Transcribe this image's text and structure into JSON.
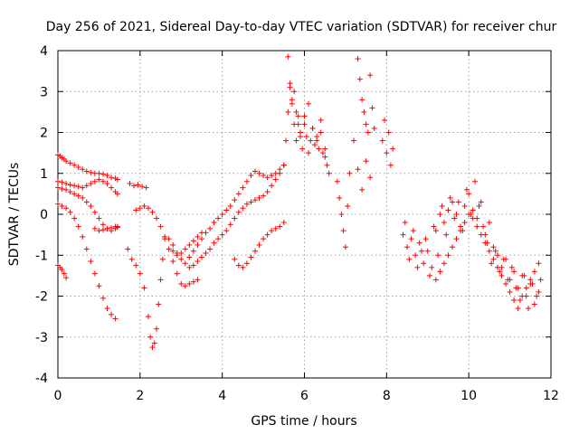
{
  "chart_data": {
    "type": "scatter",
    "title": "Day 256 of 2021, Sidereal Day-to-day VTEC variation (SDTVAR) for receiver chur",
    "xlabel": "GPS time / hours",
    "ylabel": "SDTVAR / TECUs",
    "xlim": [
      0,
      12
    ],
    "ylim": [
      -4,
      4
    ],
    "xticks": [
      0,
      2,
      4,
      6,
      8,
      10,
      12
    ],
    "yticks": [
      -4,
      -3,
      -2,
      -1,
      0,
      1,
      2,
      3,
      4
    ],
    "grid": true,
    "marker": "+",
    "series": [
      {
        "name": "SDTVAR",
        "color": "#ff0000",
        "x": [
          0.0,
          0.05,
          0.1,
          0.15,
          0.2,
          0.3,
          0.4,
          0.5,
          0.6,
          0.7,
          0.8,
          0.9,
          1.0,
          1.1,
          1.2,
          1.3,
          1.4,
          1.45,
          0.0,
          0.1,
          0.2,
          0.3,
          0.4,
          0.5,
          0.6,
          0.7,
          0.8,
          0.9,
          1.0,
          1.1,
          1.2,
          1.3,
          1.4,
          1.45,
          0.0,
          0.1,
          0.2,
          0.3,
          0.4,
          0.5,
          0.6,
          0.7,
          0.8,
          0.9,
          1.0,
          1.1,
          1.2,
          1.3,
          1.4,
          1.45,
          0.0,
          0.1,
          0.2,
          0.3,
          0.4,
          0.5,
          0.6,
          0.7,
          0.8,
          0.9,
          1.0,
          1.1,
          1.2,
          1.3,
          1.4,
          0.0,
          0.05,
          0.1,
          0.15,
          0.2,
          0.9,
          1.0,
          1.1,
          1.2,
          1.3,
          1.4,
          1.45,
          1.75,
          1.85,
          1.95,
          2.05,
          2.15,
          1.7,
          1.8,
          1.9,
          2.0,
          2.1,
          2.2,
          2.25,
          2.3,
          2.35,
          2.4,
          2.45,
          2.5,
          2.55,
          2.6,
          1.9,
          2.0,
          2.1,
          2.2,
          2.3,
          2.4,
          2.5,
          2.6,
          2.7,
          2.8,
          2.9,
          3.0,
          3.1,
          3.2,
          3.3,
          3.4,
          2.7,
          2.8,
          2.9,
          3.0,
          3.1,
          3.2,
          3.3,
          3.4,
          3.5,
          3.6,
          3.7,
          3.8,
          3.9,
          4.0,
          4.1,
          4.2,
          4.3,
          4.4,
          4.5,
          4.6,
          4.7,
          4.8,
          4.9,
          5.0,
          5.1,
          5.2,
          5.3,
          5.4,
          3.2,
          3.3,
          3.4,
          3.5,
          3.6,
          3.7,
          3.8,
          3.9,
          4.0,
          4.1,
          4.2,
          4.3,
          4.4,
          4.5,
          4.6,
          4.7,
          4.8,
          4.9,
          5.0,
          5.1,
          5.2,
          5.3,
          5.4,
          5.5,
          4.3,
          4.4,
          4.5,
          4.6,
          4.7,
          4.8,
          4.9,
          5.0,
          5.1,
          5.2,
          5.3,
          5.4,
          5.5,
          2.8,
          2.9,
          3.0,
          3.1,
          3.2,
          3.3,
          3.4,
          3.5,
          5.5,
          5.55,
          5.6,
          5.65,
          5.7,
          5.75,
          5.8,
          5.85,
          5.9,
          5.95,
          6.0,
          6.05,
          6.1,
          6.15,
          6.2,
          6.25,
          6.3,
          6.35,
          6.4,
          6.45,
          6.5,
          6.55,
          6.6,
          5.6,
          5.65,
          5.7,
          5.75,
          5.8,
          5.85,
          5.9,
          6.0,
          6.1,
          6.2,
          6.3,
          6.4,
          6.5,
          6.8,
          6.85,
          6.9,
          6.95,
          7.0,
          7.05,
          7.1,
          7.3,
          7.35,
          7.4,
          7.45,
          7.5,
          7.55,
          7.6,
          7.65,
          7.7,
          7.2,
          7.3,
          7.4,
          7.5,
          7.6,
          7.9,
          7.95,
          8.0,
          8.05,
          8.1,
          8.15,
          8.4,
          8.5,
          8.6,
          8.7,
          8.8,
          8.9,
          9.0,
          9.1,
          9.2,
          9.3,
          9.4,
          9.5,
          9.6,
          9.7,
          9.8,
          9.9,
          10.0,
          10.1,
          10.2,
          10.3,
          10.4,
          10.5,
          10.6,
          10.7,
          10.8,
          10.9,
          11.0,
          11.1,
          11.2,
          11.3,
          11.4,
          11.5,
          11.6,
          11.7,
          8.45,
          8.55,
          8.65,
          8.75,
          8.85,
          8.95,
          9.05,
          9.15,
          9.25,
          9.35,
          9.45,
          9.55,
          9.65,
          9.75,
          9.85,
          9.95,
          10.05,
          10.15,
          10.25,
          10.35,
          10.45,
          10.55,
          10.65,
          10.75,
          10.85,
          10.95,
          11.05,
          11.15,
          11.25,
          11.35,
          11.45,
          11.55,
          11.65,
          11.75,
          9.2,
          9.3,
          9.4,
          9.5,
          9.6,
          9.7,
          9.8,
          9.9,
          10.0,
          10.1,
          10.2,
          10.3,
          10.4,
          10.5,
          10.6,
          10.7,
          10.8,
          10.9,
          11.0,
          11.1,
          11.2,
          11.3,
          11.4,
          11.5,
          11.6,
          11.7
        ],
        "y": [
          1.45,
          1.42,
          1.38,
          1.35,
          1.3,
          1.25,
          1.2,
          1.15,
          1.1,
          1.05,
          1.02,
          1.0,
          1.0,
          0.98,
          0.95,
          0.9,
          0.88,
          0.85,
          0.8,
          0.78,
          0.75,
          0.72,
          0.7,
          0.68,
          0.65,
          0.7,
          0.75,
          0.8,
          0.85,
          0.8,
          0.75,
          0.65,
          0.55,
          0.5,
          0.65,
          0.62,
          0.6,
          0.55,
          0.5,
          0.45,
          0.4,
          0.3,
          0.2,
          0.05,
          -0.1,
          -0.25,
          -0.35,
          -0.4,
          -0.35,
          -0.3,
          0.25,
          0.2,
          0.15,
          0.05,
          -0.1,
          -0.3,
          -0.55,
          -0.85,
          -1.15,
          -1.45,
          -1.75,
          -2.05,
          -2.3,
          -2.45,
          -2.55,
          -1.25,
          -1.3,
          -1.35,
          -1.45,
          -1.55,
          -0.35,
          -0.4,
          -0.38,
          -0.35,
          -0.33,
          -0.3,
          -0.32,
          0.75,
          0.7,
          0.72,
          0.68,
          0.65,
          -0.85,
          -1.1,
          -1.25,
          -1.45,
          -1.8,
          -2.5,
          -3.0,
          -3.25,
          -3.15,
          -2.8,
          -2.2,
          -1.6,
          -1.1,
          -0.6,
          0.1,
          0.15,
          0.2,
          0.15,
          0.05,
          -0.1,
          -0.3,
          -0.55,
          -0.85,
          -1.15,
          -1.45,
          -1.7,
          -1.75,
          -1.7,
          -1.65,
          -1.6,
          -0.6,
          -0.75,
          -0.95,
          -1.1,
          -1.2,
          -1.05,
          -0.9,
          -0.75,
          -0.6,
          -0.45,
          -0.35,
          -0.2,
          -0.1,
          0.0,
          0.1,
          0.2,
          0.35,
          0.5,
          0.65,
          0.8,
          0.95,
          1.05,
          1.0,
          0.95,
          0.9,
          0.95,
          1.0,
          1.1,
          -1.3,
          -1.25,
          -1.15,
          -1.05,
          -0.95,
          -0.85,
          -0.7,
          -0.6,
          -0.5,
          -0.4,
          -0.25,
          -0.1,
          0.05,
          0.15,
          0.25,
          0.3,
          0.35,
          0.4,
          0.45,
          0.55,
          0.7,
          0.85,
          1.0,
          1.2,
          -1.1,
          -1.25,
          -1.3,
          -1.2,
          -1.05,
          -0.9,
          -0.75,
          -0.6,
          -0.5,
          -0.4,
          -0.35,
          -0.3,
          -0.2,
          -0.9,
          -1.0,
          -0.95,
          -0.85,
          -0.75,
          -0.65,
          -0.55,
          -0.45,
          1.2,
          1.8,
          2.5,
          3.1,
          2.7,
          2.2,
          1.8,
          2.4,
          2.0,
          1.6,
          2.2,
          1.9,
          1.5,
          1.8,
          2.1,
          1.7,
          1.9,
          1.6,
          2.0,
          1.5,
          1.4,
          1.2,
          1.0,
          3.85,
          3.2,
          2.8,
          3.0,
          2.5,
          2.2,
          1.9,
          2.4,
          2.7,
          2.1,
          1.8,
          2.3,
          1.6,
          0.8,
          0.4,
          0.0,
          -0.4,
          -0.8,
          0.2,
          1.0,
          3.8,
          3.3,
          2.8,
          2.5,
          2.2,
          2.0,
          3.4,
          2.6,
          2.1,
          1.8,
          1.1,
          0.6,
          1.3,
          0.9,
          1.8,
          2.3,
          1.5,
          2.0,
          1.2,
          1.6,
          -0.5,
          -0.8,
          -0.6,
          -1.0,
          -0.7,
          -1.2,
          -0.9,
          -1.3,
          -0.4,
          0.0,
          -0.2,
          0.1,
          0.3,
          0.0,
          -0.3,
          0.2,
          0.5,
          0.1,
          -0.1,
          0.3,
          -0.5,
          -0.2,
          -0.8,
          -1.0,
          -1.3,
          -1.1,
          -1.6,
          -1.4,
          -1.8,
          -1.5,
          -2.0,
          -1.7,
          -2.2,
          -1.9,
          -0.2,
          -1.1,
          -0.4,
          -1.3,
          -0.9,
          -0.6,
          -1.5,
          -0.3,
          -1.0,
          0.2,
          -0.5,
          0.4,
          -0.1,
          0.3,
          -0.4,
          0.6,
          0.0,
          0.8,
          0.2,
          -0.3,
          -0.7,
          -1.2,
          -0.9,
          -1.4,
          -1.1,
          -1.6,
          -1.3,
          -1.8,
          -2.1,
          -1.5,
          -2.3,
          -1.7,
          -2.0,
          -1.6,
          -1.6,
          -1.4,
          -1.2,
          -1.0,
          -0.8,
          -0.6,
          -0.4,
          -0.2,
          0.0,
          -0.1,
          -0.3,
          -0.5,
          -0.7,
          -0.9,
          -1.1,
          -1.3,
          -1.5,
          -1.7,
          -1.9,
          -2.1,
          -2.3,
          -2.0,
          -1.8,
          -1.6,
          -1.4,
          -1.2
        ]
      }
    ]
  }
}
